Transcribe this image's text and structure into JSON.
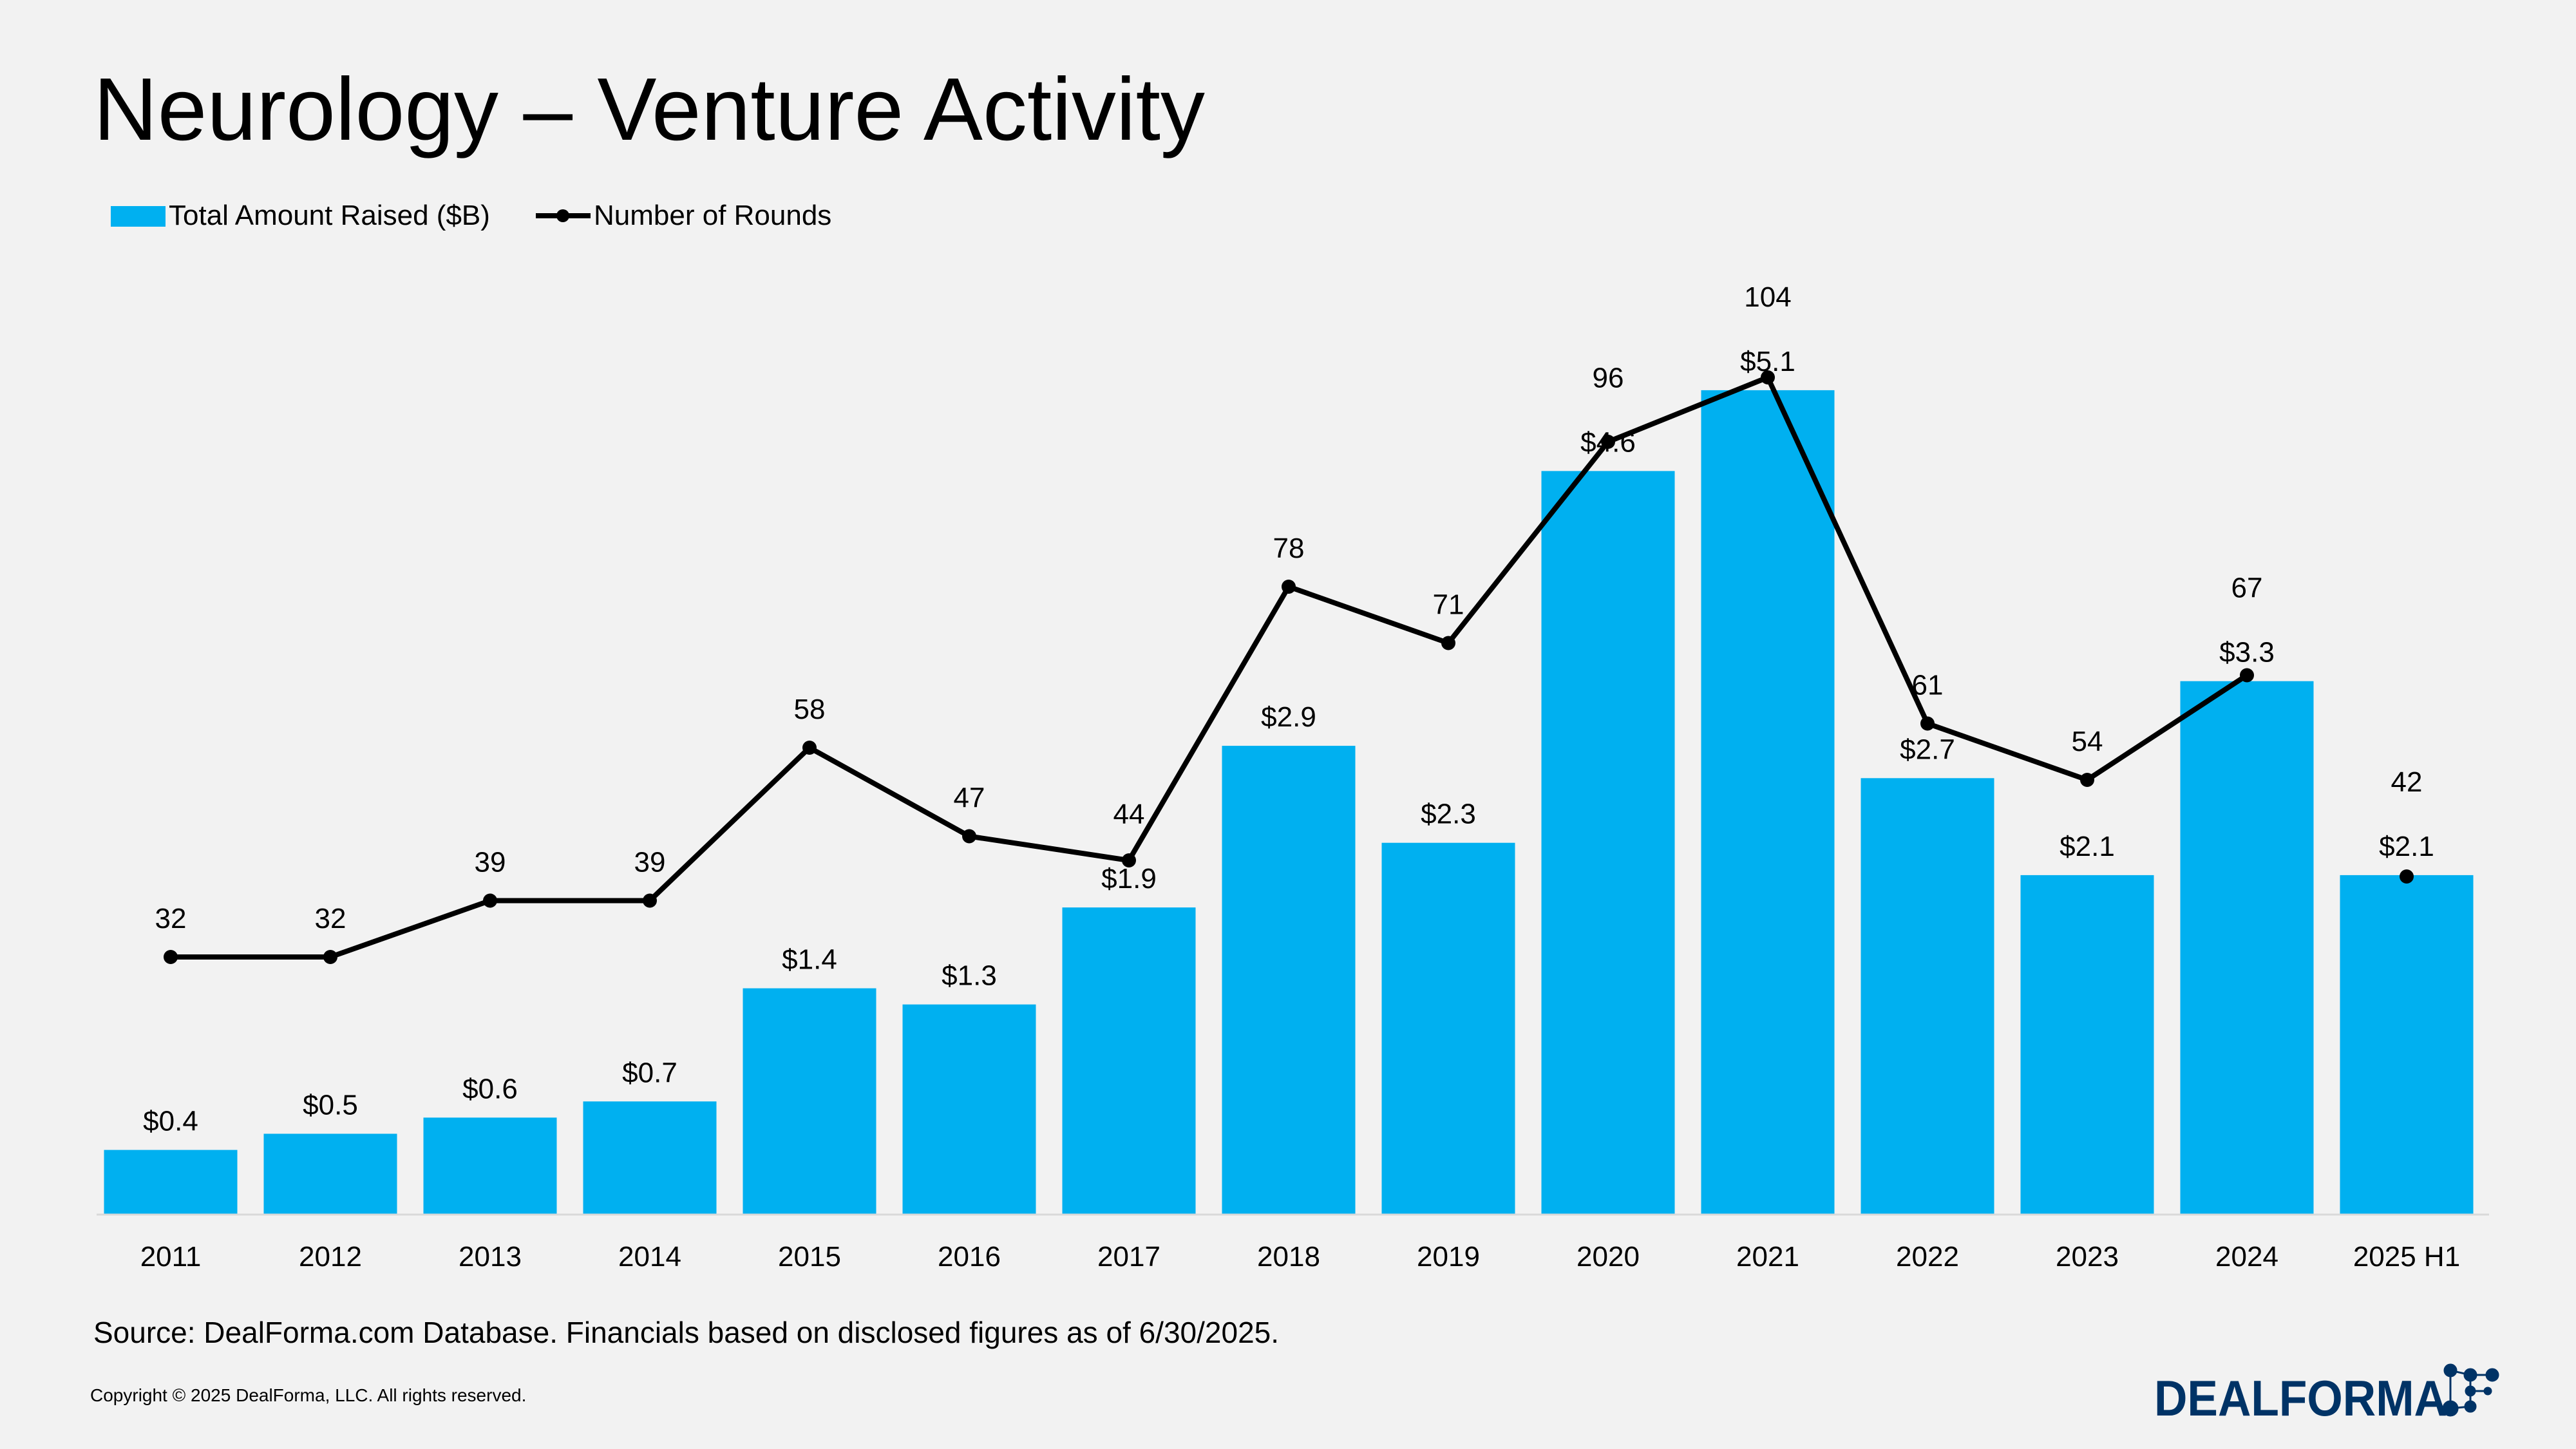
{
  "title": "Neurology – Venture Activity",
  "source": "Source: DealForma.com Database. Financials based on disclosed figures as of 6/30/2025.",
  "copyright": "Copyright © 2025 DealForma, LLC. All rights reserved.",
  "logo": {
    "text": "DealForma",
    "registered": "®"
  },
  "colors": {
    "bar": "#00b0f0",
    "line": "#000000",
    "logo": "#003366",
    "background": "#f2f2f2"
  },
  "chart_data": {
    "type": "bar+line",
    "title": "Neurology – Venture Activity",
    "categories": [
      "2011",
      "2012",
      "2013",
      "2014",
      "2015",
      "2016",
      "2017",
      "2018",
      "2019",
      "2020",
      "2021",
      "2022",
      "2023",
      "2024",
      "2025 H1"
    ],
    "series": [
      {
        "name": "Total Amount Raised ($B)",
        "type": "bar",
        "values": [
          0.4,
          0.5,
          0.6,
          0.7,
          1.4,
          1.3,
          1.9,
          2.9,
          2.3,
          4.6,
          5.1,
          2.7,
          2.1,
          3.3,
          2.1
        ],
        "labels": [
          "$0.4",
          "$0.5",
          "$0.6",
          "$0.7",
          "$1.4",
          "$1.3",
          "$1.9",
          "$2.9",
          "$2.3",
          "$4.6",
          "$5.1",
          "$2.7",
          "$2.1",
          "$3.3",
          "$2.1"
        ]
      },
      {
        "name": "Number of Rounds",
        "type": "line",
        "values": [
          32,
          32,
          39,
          39,
          58,
          47,
          44,
          78,
          71,
          96,
          104,
          61,
          54,
          67,
          42
        ],
        "last_point_disconnected": true
      }
    ],
    "legend_position": "top-left",
    "grid": false,
    "ylim_bars": [
      0,
      6
    ],
    "ylim_line": [
      0,
      150
    ]
  }
}
